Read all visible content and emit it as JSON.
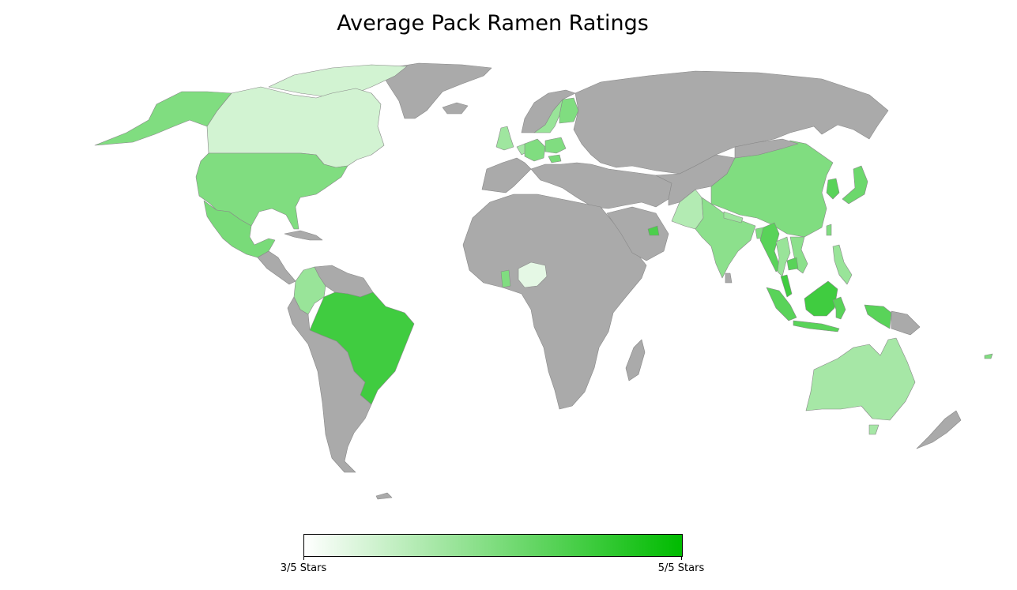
{
  "title": "Average Pack Ramen Ratings",
  "colors": {
    "no_data": "#aaaaaa",
    "scale_min": "#ffffff",
    "scale_max": "#00bb00",
    "border": "#888888"
  },
  "scale": {
    "min": 3,
    "max": 5,
    "min_label": "3/5 Stars",
    "max_label": "5/5 Stars"
  },
  "ratings": {
    "canada": 3.35,
    "alaska": 4.0,
    "usa": 4.0,
    "mexico": 4.05,
    "colombia": 3.8,
    "brazil": 4.5,
    "uk": 3.75,
    "netherlands": 3.7,
    "germany": 4.0,
    "poland": 4.0,
    "hungary": 4.05,
    "sweden": 3.8,
    "finland": 4.0,
    "ghana": 4.0,
    "nigeria": 3.2,
    "uae": 4.4,
    "pakistan": 3.6,
    "india": 3.9,
    "nepal": 3.75,
    "bangladesh": 4.0,
    "china": 4.0,
    "myanmar": 4.3,
    "thailand": 3.8,
    "cambodia": 4.3,
    "vietnam": 3.9,
    "korea": 4.3,
    "japan": 4.15,
    "taiwan": 4.0,
    "philippines": 3.8,
    "malaysia": 4.5,
    "borneo": 4.5,
    "sumatra": 4.3,
    "java": 4.3,
    "sulawesi": 4.3,
    "papua": 4.3,
    "australia": 3.7,
    "tasmania": 3.7,
    "fiji": 4.0
  }
}
